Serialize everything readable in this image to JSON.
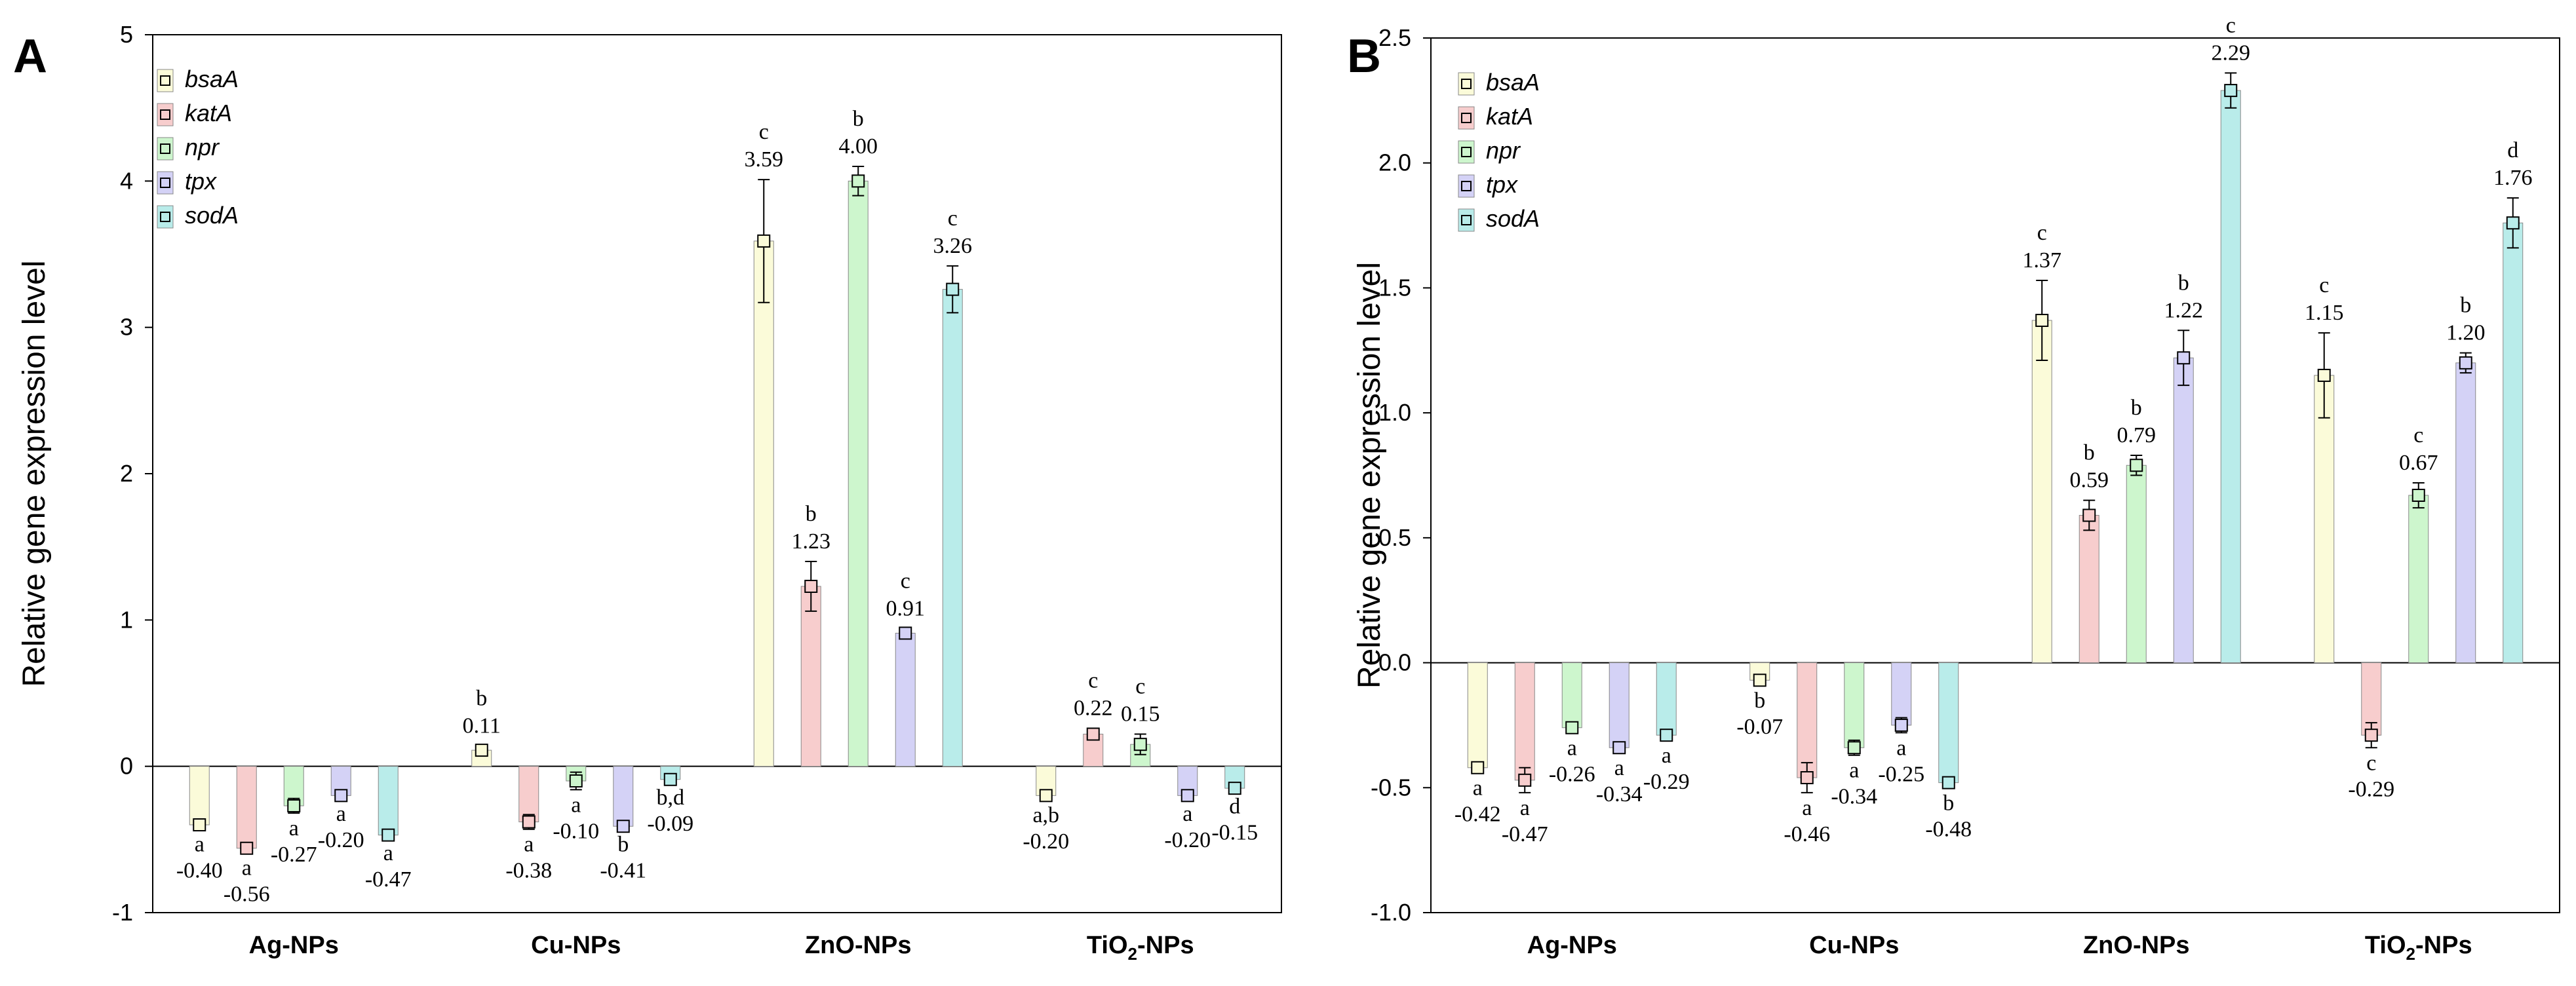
{
  "colors": {
    "bsaA": "#fbfbd9",
    "katA": "#f7cdcd",
    "npr": "#cdf6cd",
    "tpx": "#d4d2f6",
    "sodA": "#b9ecea",
    "axis": "#000000"
  },
  "chart_data": [
    {
      "type": "bar",
      "panel": "A",
      "ylabel": "Relative gene expression level",
      "ylim": [
        -1,
        5
      ],
      "yticks": [
        "-1",
        "0",
        "1",
        "2",
        "3",
        "4",
        "5"
      ],
      "categories": [
        {
          "main": "Ag-NPs",
          "sub": ""
        },
        {
          "main": "Cu-NPs",
          "sub": ""
        },
        {
          "main": "ZnO-NPs",
          "sub": ""
        },
        {
          "main": "TiO",
          "sub": "2",
          "tail": "-NPs"
        }
      ],
      "legend": [
        "bsaA",
        "katA",
        "npr",
        "tpx",
        "sodA"
      ],
      "series": [
        {
          "name": "bsaA",
          "color_key": "bsaA",
          "values": [
            -0.4,
            0.11,
            3.59,
            -0.2
          ],
          "errors": [
            0.03,
            0.03,
            0.42,
            0.03
          ],
          "labels": [
            "-0.40",
            "0.11",
            "3.59",
            "-0.20"
          ],
          "sig": [
            "a",
            "b",
            "c",
            "a,b"
          ]
        },
        {
          "name": "katA",
          "color_key": "katA",
          "values": [
            -0.56,
            -0.38,
            1.23,
            0.22
          ],
          "errors": [
            0.03,
            0.05,
            0.17,
            0.04
          ],
          "labels": [
            "-0.56",
            "-0.38",
            "1.23",
            "0.22"
          ],
          "sig": [
            "a",
            "a",
            "b",
            "c"
          ]
        },
        {
          "name": "npr",
          "color_key": "npr",
          "values": [
            -0.27,
            -0.1,
            4.0,
            0.15
          ],
          "errors": [
            0.05,
            0.06,
            0.1,
            0.07
          ],
          "labels": [
            "-0.27",
            "-0.10",
            "4.00",
            "0.15"
          ],
          "sig": [
            "a",
            "a",
            "b",
            "c"
          ]
        },
        {
          "name": "tpx",
          "color_key": "tpx",
          "values": [
            -0.2,
            -0.41,
            0.91,
            -0.2
          ],
          "errors": [
            0.02,
            0.02,
            0.03,
            0.02
          ],
          "labels": [
            "-0.20",
            "-0.41",
            "0.91",
            "-0.20"
          ],
          "sig": [
            "a",
            "b",
            "c",
            "a"
          ]
        },
        {
          "name": "sodA",
          "color_key": "sodA",
          "values": [
            -0.47,
            -0.09,
            3.26,
            -0.15
          ],
          "errors": [
            0.02,
            0.02,
            0.16,
            0.02
          ],
          "labels": [
            "-0.47",
            "-0.09",
            "3.26",
            "-0.15"
          ],
          "sig": [
            "a",
            "b,d",
            "c",
            "d"
          ]
        }
      ]
    },
    {
      "type": "bar",
      "panel": "B",
      "ylabel": "Relative gene expression level",
      "ylim": [
        -1.0,
        2.5
      ],
      "yticks": [
        "-1.0",
        "-0.5",
        "0.0",
        "0.5",
        "1.0",
        "1.5",
        "2.0",
        "2.5"
      ],
      "categories": [
        {
          "main": "Ag-NPs",
          "sub": ""
        },
        {
          "main": "Cu-NPs",
          "sub": ""
        },
        {
          "main": "ZnO-NPs",
          "sub": ""
        },
        {
          "main": "TiO",
          "sub": "2",
          "tail": "-NPs"
        }
      ],
      "legend": [
        "bsaA",
        "katA",
        "npr",
        "tpx",
        "sodA"
      ],
      "series": [
        {
          "name": "bsaA",
          "color_key": "bsaA",
          "values": [
            -0.42,
            -0.07,
            1.37,
            1.15
          ],
          "errors": [
            0.02,
            0.02,
            0.16,
            0.17
          ],
          "labels": [
            "-0.42",
            "-0.07",
            "1.37",
            "1.15"
          ],
          "sig": [
            "a",
            "b",
            "c",
            "c"
          ]
        },
        {
          "name": "katA",
          "color_key": "katA",
          "values": [
            -0.47,
            -0.46,
            0.59,
            -0.29
          ],
          "errors": [
            0.05,
            0.06,
            0.06,
            0.05
          ],
          "labels": [
            "-0.47",
            "-0.46",
            "0.59",
            "-0.29"
          ],
          "sig": [
            "a",
            "a",
            "b",
            "c"
          ]
        },
        {
          "name": "npr",
          "color_key": "npr",
          "values": [
            -0.26,
            -0.34,
            0.79,
            0.67
          ],
          "errors": [
            0.02,
            0.03,
            0.04,
            0.05
          ],
          "labels": [
            "-0.26",
            "-0.34",
            "0.79",
            "0.67"
          ],
          "sig": [
            "a",
            "a",
            "b",
            "c"
          ]
        },
        {
          "name": "tpx",
          "color_key": "tpx",
          "values": [
            -0.34,
            -0.25,
            1.22,
            1.2
          ],
          "errors": [
            0.02,
            0.03,
            0.11,
            0.04
          ],
          "labels": [
            "-0.34",
            "-0.25",
            "1.22",
            "1.20"
          ],
          "sig": [
            "a",
            "a",
            "b",
            "b"
          ]
        },
        {
          "name": "sodA",
          "color_key": "sodA",
          "values": [
            -0.29,
            -0.48,
            2.29,
            1.76
          ],
          "errors": [
            0.02,
            0.02,
            0.07,
            0.1
          ],
          "labels": [
            "-0.29",
            "-0.48",
            "2.29",
            "1.76"
          ],
          "sig": [
            "a",
            "b",
            "c",
            "d"
          ]
        }
      ]
    }
  ]
}
